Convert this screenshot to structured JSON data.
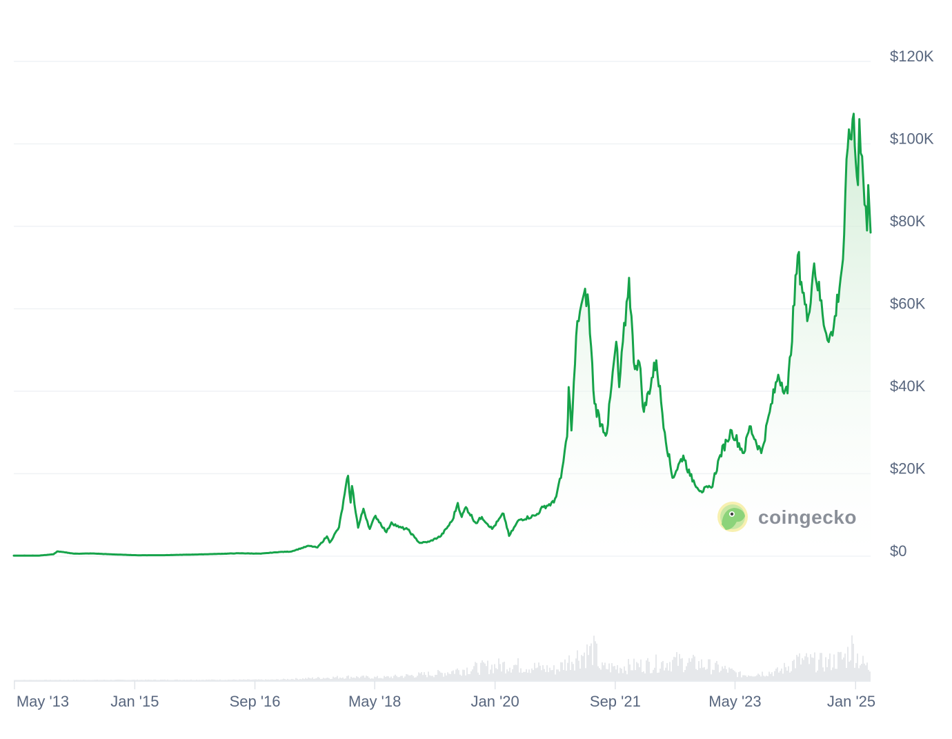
{
  "chart_data": {
    "type": "area",
    "title": "",
    "xlabel": "",
    "ylabel": "",
    "ylim": [
      0,
      120000
    ],
    "y_ticks": [
      {
        "value": 0,
        "label": "$0"
      },
      {
        "value": 20000,
        "label": "$20K"
      },
      {
        "value": 40000,
        "label": "$40K"
      },
      {
        "value": 60000,
        "label": "$60K"
      },
      {
        "value": 80000,
        "label": "$80K"
      },
      {
        "value": 100000,
        "label": "$100K"
      },
      {
        "value": 120000,
        "label": "$120K"
      }
    ],
    "x_ticks": [
      {
        "date": "2013-05-01",
        "label": "May '13"
      },
      {
        "date": "2015-01-01",
        "label": "Jan '15"
      },
      {
        "date": "2016-09-01",
        "label": "Sep '16"
      },
      {
        "date": "2018-05-01",
        "label": "May '18"
      },
      {
        "date": "2020-01-01",
        "label": "Jan '20"
      },
      {
        "date": "2021-09-01",
        "label": "Sep '21"
      },
      {
        "date": "2023-05-01",
        "label": "May '23"
      },
      {
        "date": "2025-01-01",
        "label": "Jan '25"
      }
    ],
    "grid": true,
    "legend": "none",
    "colors": {
      "line": "#16a34a",
      "area_top": "#c8e9cd",
      "area_bottom": "#ffffff",
      "volume": "#e6e8eb",
      "grid": "#eff2f5",
      "tick_text": "#58667e"
    },
    "series": [
      {
        "values": [
          [
            "2013-04-28",
            135
          ],
          [
            "2013-09-01",
            130
          ],
          [
            "2013-11-15",
            450
          ],
          [
            "2013-12-04",
            1150
          ],
          [
            "2014-01-15",
            900
          ],
          [
            "2014-03-01",
            600
          ],
          [
            "2014-06-01",
            650
          ],
          [
            "2014-09-01",
            450
          ],
          [
            "2015-01-15",
            220
          ],
          [
            "2015-06-01",
            240
          ],
          [
            "2015-12-01",
            430
          ],
          [
            "2016-06-15",
            700
          ],
          [
            "2016-10-01",
            610
          ],
          [
            "2017-01-01",
            1000
          ],
          [
            "2017-03-01",
            1100
          ],
          [
            "2017-06-01",
            2500
          ],
          [
            "2017-07-15",
            2100
          ],
          [
            "2017-09-01",
            4800
          ],
          [
            "2017-09-15",
            3300
          ],
          [
            "2017-11-01",
            7000
          ],
          [
            "2017-12-17",
            19500
          ],
          [
            "2017-12-30",
            13000
          ],
          [
            "2018-01-06",
            17000
          ],
          [
            "2018-02-06",
            6900
          ],
          [
            "2018-03-05",
            11500
          ],
          [
            "2018-04-06",
            6600
          ],
          [
            "2018-05-05",
            9800
          ],
          [
            "2018-06-29",
            5800
          ],
          [
            "2018-07-25",
            8200
          ],
          [
            "2018-09-01",
            7000
          ],
          [
            "2018-10-15",
            6500
          ],
          [
            "2018-11-20",
            4500
          ],
          [
            "2018-12-15",
            3200
          ],
          [
            "2019-02-01",
            3500
          ],
          [
            "2019-04-02",
            4900
          ],
          [
            "2019-05-30",
            8700
          ],
          [
            "2019-06-26",
            12900
          ],
          [
            "2019-07-16",
            9500
          ],
          [
            "2019-08-06",
            11900
          ],
          [
            "2019-09-26",
            8000
          ],
          [
            "2019-10-26",
            9500
          ],
          [
            "2019-12-17",
            6600
          ],
          [
            "2020-02-13",
            10300
          ],
          [
            "2020-03-12",
            4900
          ],
          [
            "2020-05-01",
            8800
          ],
          [
            "2020-07-26",
            9900
          ],
          [
            "2020-09-01",
            11900
          ],
          [
            "2020-10-25",
            13000
          ],
          [
            "2020-11-30",
            19000
          ],
          [
            "2020-12-31",
            29000
          ],
          [
            "2021-01-08",
            41000
          ],
          [
            "2021-01-22",
            30500
          ],
          [
            "2021-02-21",
            57000
          ],
          [
            "2021-03-13",
            61000
          ],
          [
            "2021-04-14",
            63500
          ],
          [
            "2021-05-19",
            37000
          ],
          [
            "2021-06-22",
            32000
          ],
          [
            "2021-07-20",
            29800
          ],
          [
            "2021-09-06",
            52000
          ],
          [
            "2021-09-21",
            41000
          ],
          [
            "2021-11-10",
            67500
          ],
          [
            "2021-12-04",
            47000
          ],
          [
            "2022-01-01",
            47000
          ],
          [
            "2022-01-24",
            35000
          ],
          [
            "2022-03-28",
            47500
          ],
          [
            "2022-05-10",
            30000
          ],
          [
            "2022-06-18",
            19000
          ],
          [
            "2022-08-12",
            24400
          ],
          [
            "2022-09-15",
            19500
          ],
          [
            "2022-11-09",
            15800
          ],
          [
            "2023-01-01",
            16600
          ],
          [
            "2023-02-15",
            24500
          ],
          [
            "2023-03-20",
            28000
          ],
          [
            "2023-04-14",
            30500
          ],
          [
            "2023-06-15",
            25000
          ],
          [
            "2023-07-14",
            31500
          ],
          [
            "2023-09-11",
            25000
          ],
          [
            "2023-10-24",
            35000
          ],
          [
            "2023-12-06",
            44000
          ],
          [
            "2024-01-22",
            39500
          ],
          [
            "2024-03-14",
            73000
          ],
          [
            "2024-05-01",
            57000
          ],
          [
            "2024-06-05",
            71000
          ],
          [
            "2024-08-05",
            54000
          ],
          [
            "2024-09-06",
            53500
          ],
          [
            "2024-10-29",
            72000
          ],
          [
            "2024-11-22",
            99000
          ],
          [
            "2024-12-17",
            106000
          ],
          [
            "2025-01-13",
            90000
          ],
          [
            "2025-01-20",
            106000
          ],
          [
            "2025-02-03",
            97000
          ],
          [
            "2025-02-28",
            79000
          ],
          [
            "2025-03-06",
            90000
          ],
          [
            "2025-03-18",
            78500
          ]
        ]
      }
    ],
    "volume": [
      [
        "2013-04-28",
        0.01
      ],
      [
        "2016-12-01",
        0.02
      ],
      [
        "2017-12-17",
        0.1
      ],
      [
        "2018-06-01",
        0.08
      ],
      [
        "2019-04-01",
        0.2
      ],
      [
        "2019-07-01",
        0.3
      ],
      [
        "2020-03-12",
        0.45
      ],
      [
        "2020-11-01",
        0.3
      ],
      [
        "2021-01-05",
        0.55
      ],
      [
        "2021-02-22",
        0.7
      ],
      [
        "2021-05-19",
        0.85
      ],
      [
        "2021-06-15",
        0.35
      ],
      [
        "2021-11-10",
        0.4
      ],
      [
        "2022-05-10",
        0.5
      ],
      [
        "2022-06-18",
        0.55
      ],
      [
        "2022-11-09",
        0.45
      ],
      [
        "2023-03-15",
        0.3
      ],
      [
        "2023-06-01",
        0.15
      ],
      [
        "2023-12-06",
        0.25
      ],
      [
        "2024-03-05",
        0.55
      ],
      [
        "2024-08-05",
        0.5
      ],
      [
        "2024-11-12",
        0.65
      ],
      [
        "2024-12-05",
        1.0
      ],
      [
        "2025-01-20",
        0.55
      ],
      [
        "2025-03-18",
        0.3
      ]
    ]
  },
  "watermark": {
    "text": "coingecko",
    "icon": "gecko-logo-icon"
  }
}
